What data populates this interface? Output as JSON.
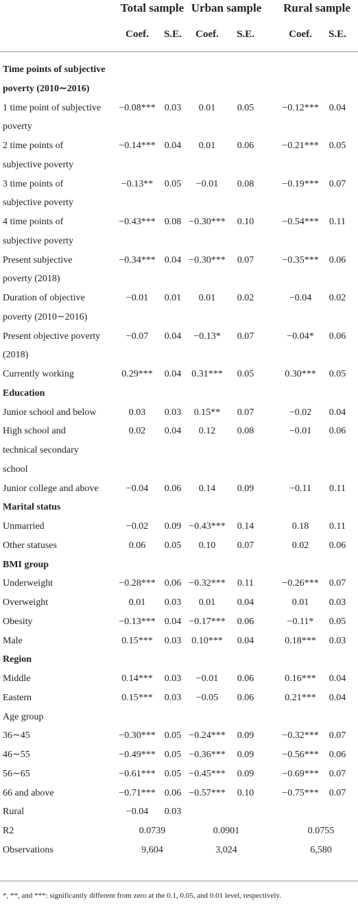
{
  "header": {
    "groups": [
      "Total sample",
      "Urban sample",
      "Rural sample"
    ],
    "columns": [
      "Coef.",
      "S.E.",
      "Coef.",
      "S.E.",
      "Coef.",
      "S.E."
    ]
  },
  "table": {
    "rows": [
      {
        "label": [
          "Time points of subjective",
          "poverty (2010∼2016)"
        ]
      },
      {
        "label": [
          "1 time point of subjective",
          "poverty"
        ],
        "cells": [
          "−0.08***",
          "0.03",
          "0.01",
          "0.05",
          "−0.12***",
          "0.04"
        ]
      },
      {
        "label": [
          "2 time points of",
          "subjective poverty"
        ],
        "cells": [
          "−0.14***",
          "0.04",
          "0.01",
          "0.06",
          "−0.21***",
          "0.05"
        ]
      },
      {
        "label": [
          "3 time points of",
          "subjective poverty"
        ],
        "cells": [
          "−0.13**",
          "0.05",
          "−0.01",
          "0.08",
          "−0.19***",
          "0.07"
        ]
      },
      {
        "label": [
          "4 time points of",
          "subjective poverty"
        ],
        "cells": [
          "−0.43***",
          "0.08",
          "−0.30***",
          "0.10",
          "−0.54***",
          "0.11"
        ]
      },
      {
        "label": [
          "Present subjective",
          "poverty (2018)"
        ],
        "cells": [
          "−0.34***",
          "0.04",
          "−0.30***",
          "0.07",
          "−0.35***",
          "0.06"
        ]
      },
      {
        "label": [
          "Duration of objective",
          "poverty (2010∼2016)"
        ],
        "cells": [
          "−0.01",
          "0.01",
          "0.01",
          "0.02",
          "−0.04",
          "0.02"
        ]
      },
      {
        "label": [
          "Present objective poverty",
          "(2018)"
        ],
        "cells": [
          "−0.07",
          "0.04",
          "−0.13*",
          "0.07",
          "−0.04*",
          "0.06"
        ]
      },
      {
        "label": [
          "Currently working"
        ],
        "cells": [
          "0.29***",
          "0.04",
          "0.31***",
          "0.05",
          "0.30***",
          "0.05"
        ]
      },
      {
        "label": [
          "Education"
        ]
      },
      {
        "label": [
          "Junior school and below"
        ],
        "cells": [
          "0.03",
          "0.03",
          "0.15**",
          "0.07",
          "−0.02",
          "0.04"
        ]
      },
      {
        "label": [
          "High school and",
          "technical secondary",
          "school"
        ],
        "cells": [
          "0.02",
          "0.04",
          "0.12",
          "0.08",
          "−0.01",
          "0.06"
        ]
      },
      {
        "label": [
          "Junior college and above"
        ],
        "cells": [
          "−0.04",
          "0.06",
          "0.14",
          "0.09",
          "−0.11",
          "0.11"
        ]
      },
      {
        "label": [
          "Marital status"
        ]
      },
      {
        "label": [
          "Unmarried"
        ],
        "cells": [
          "−0.02",
          "0.09",
          "−0.43***",
          "0.14",
          "0.18",
          "0.11"
        ]
      },
      {
        "label": [
          "Other statuses"
        ],
        "cells": [
          "0.06",
          "0.05",
          "0.10",
          "0.07",
          "0.02",
          "0.06"
        ]
      },
      {
        "label": [
          "BMI group"
        ]
      },
      {
        "label": [
          "Underweight"
        ],
        "cells": [
          "−0.28***",
          "0.06",
          "−0.32***",
          "0.11",
          "−0.26***",
          "0.07"
        ]
      },
      {
        "label": [
          "Overweight"
        ],
        "cells": [
          "0.01",
          "0.03",
          "0.01",
          "0.04",
          "0.01",
          "0.03"
        ]
      },
      {
        "label": [
          "Obesity"
        ],
        "cells": [
          "−0.13***",
          "0.04",
          "−0.17***",
          "0.06",
          "−0.11*",
          "0.05"
        ]
      },
      {
        "label": [
          "Male"
        ],
        "cells": [
          "0.15***",
          "0.03",
          "0.10***",
          "0.04",
          "0.18***",
          "0.03"
        ]
      },
      {
        "label": [
          "Region"
        ]
      },
      {
        "label": [
          "Middle"
        ],
        "cells": [
          "0.14***",
          "0.03",
          "−0.01",
          "0.06",
          "0.16***",
          "0.04"
        ]
      },
      {
        "label": [
          "Eastern"
        ],
        "cells": [
          "0.15***",
          "0.03",
          "−0.05",
          "0.06",
          "0.21***",
          "0.04"
        ]
      },
      {
        "label": [
          "Age group"
        ],
        "cells": []
      },
      {
        "label": [
          "36∼45"
        ],
        "cells": [
          "−0.30***",
          "0.05",
          "−0.24***",
          "0.09",
          "−0.32***",
          "0.07"
        ]
      },
      {
        "label": [
          "46∼55"
        ],
        "cells": [
          "−0.49***",
          "0.05",
          "−0.36***",
          "0.09",
          "−0.56***",
          "0.06"
        ]
      },
      {
        "label": [
          "56∼65"
        ],
        "cells": [
          "−0.61***",
          "0.05",
          "−0.45***",
          "0.09",
          "−0.69***",
          "0.07"
        ]
      },
      {
        "label": [
          "66 and above"
        ],
        "cells": [
          "−0.71***",
          "0.06",
          "−0.57***",
          "0.10",
          "−0.75***",
          "0.07"
        ]
      },
      {
        "label": [
          "Rural"
        ],
        "cells": [
          "−0.04",
          "0.03"
        ]
      }
    ],
    "summary_rows": [
      {
        "label": "R2",
        "values": [
          "0.0739",
          "0.0901",
          "0.0755"
        ]
      },
      {
        "label": "Observations",
        "values": [
          "9,604",
          "3,024",
          "6,580"
        ]
      }
    ]
  },
  "footnote": "*, **, and ***: significantly different from zero at the 0.1, 0.05, and 0.01 level, respectively."
}
